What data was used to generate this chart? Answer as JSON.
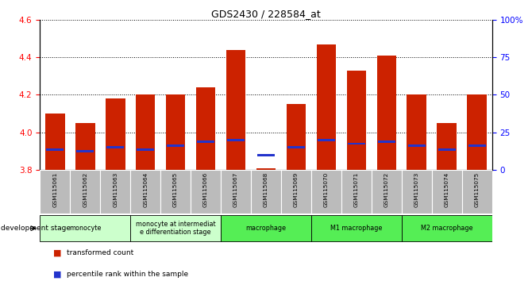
{
  "title": "GDS2430 / 228584_at",
  "samples": [
    "GSM115061",
    "GSM115062",
    "GSM115063",
    "GSM115064",
    "GSM115065",
    "GSM115066",
    "GSM115067",
    "GSM115068",
    "GSM115069",
    "GSM115070",
    "GSM115071",
    "GSM115072",
    "GSM115073",
    "GSM115074",
    "GSM115075"
  ],
  "bar_values": [
    4.1,
    4.05,
    4.18,
    4.2,
    4.2,
    4.24,
    4.44,
    3.81,
    4.15,
    4.47,
    4.33,
    4.41,
    4.2,
    4.05,
    4.2
  ],
  "bar_base": 3.8,
  "blue_dot_values": [
    3.91,
    3.9,
    3.92,
    3.91,
    3.93,
    3.95,
    3.96,
    3.88,
    3.92,
    3.96,
    3.94,
    3.95,
    3.93,
    3.91,
    3.93
  ],
  "bar_color": "#cc2200",
  "blue_color": "#2233cc",
  "ylim_left": [
    3.8,
    4.6
  ],
  "yticks_left": [
    3.8,
    4.0,
    4.2,
    4.4,
    4.6
  ],
  "ylim_right": [
    0,
    100
  ],
  "yticks_right": [
    0,
    25,
    50,
    75,
    100
  ],
  "ytick_labels_right": [
    "0",
    "25",
    "50",
    "75",
    "100%"
  ],
  "groups": [
    {
      "label": "monocyte",
      "cols": [
        0,
        1,
        2
      ],
      "color": "#ccffcc"
    },
    {
      "label": "monocyte at intermediat\ne differentiation stage",
      "cols": [
        3,
        4,
        5
      ],
      "color": "#ccffcc"
    },
    {
      "label": "macrophage",
      "cols": [
        6,
        7,
        8
      ],
      "color": "#55ee55"
    },
    {
      "label": "M1 macrophage",
      "cols": [
        9,
        10,
        11
      ],
      "color": "#55ee55"
    },
    {
      "label": "M2 macrophage",
      "cols": [
        12,
        13,
        14
      ],
      "color": "#55ee55"
    }
  ],
  "dev_stage_label": "development stage",
  "legend1_label": "transformed count",
  "legend2_label": "percentile rank within the sample",
  "bar_width": 0.65,
  "tick_label_bg": "#bbbbbb"
}
